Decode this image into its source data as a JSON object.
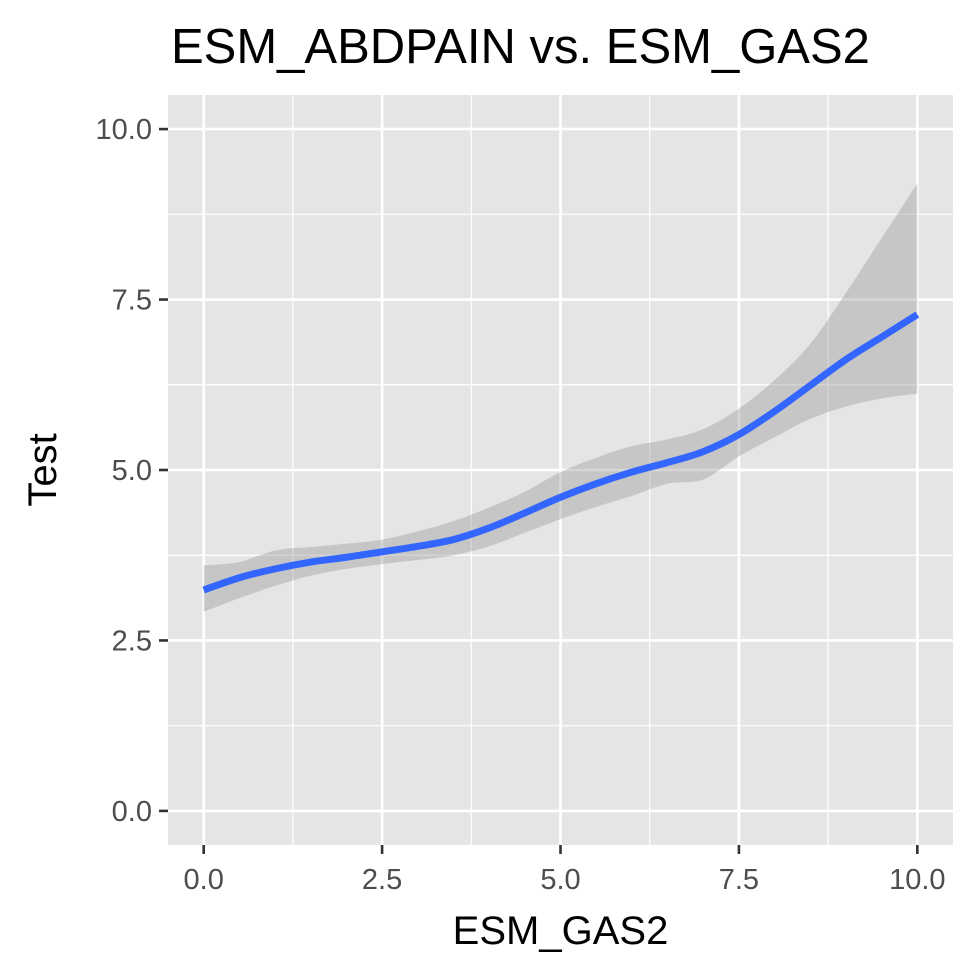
{
  "chart_data": {
    "type": "line",
    "title": "ESM_ABDPAIN vs. ESM_GAS2",
    "xlabel": "ESM_GAS2",
    "ylabel": "Test",
    "xlim": [
      -0.5,
      10.5
    ],
    "ylim": [
      -0.5,
      10.5
    ],
    "x_ticks": [
      0.0,
      2.5,
      5.0,
      7.5,
      10.0
    ],
    "x_tick_labels": [
      "0.0",
      "2.5",
      "5.0",
      "7.5",
      "10.0"
    ],
    "y_ticks": [
      0.0,
      2.5,
      5.0,
      7.5,
      10.0
    ],
    "y_tick_labels": [
      "0.0",
      "2.5",
      "5.0",
      "7.5",
      "10.0"
    ],
    "grid": true,
    "legend": "none",
    "series": [
      {
        "x": [
          0.0,
          0.5,
          1.0,
          1.5,
          2.0,
          2.5,
          3.0,
          3.5,
          4.0,
          4.5,
          5.0,
          5.5,
          6.0,
          6.5,
          7.0,
          7.5,
          8.0,
          8.5,
          9.0,
          9.5,
          10.0
        ],
        "y": [
          3.24,
          3.42,
          3.55,
          3.65,
          3.72,
          3.8,
          3.88,
          3.98,
          4.15,
          4.37,
          4.6,
          4.8,
          4.97,
          5.11,
          5.27,
          5.52,
          5.86,
          6.24,
          6.62,
          6.95,
          7.28
        ],
        "ci_upper": [
          3.6,
          3.65,
          3.82,
          3.87,
          3.92,
          3.98,
          4.1,
          4.25,
          4.45,
          4.68,
          4.97,
          5.18,
          5.35,
          5.45,
          5.6,
          5.9,
          6.32,
          6.85,
          7.6,
          8.4,
          9.2
        ],
        "ci_lower": [
          2.92,
          3.12,
          3.3,
          3.45,
          3.55,
          3.62,
          3.68,
          3.75,
          3.88,
          4.08,
          4.28,
          4.46,
          4.62,
          4.8,
          4.86,
          5.2,
          5.48,
          5.75,
          5.93,
          6.05,
          6.12
        ]
      }
    ],
    "colors": {
      "line": "#3366ff",
      "band": "#999999",
      "panel_bg": "#e5e5e5",
      "grid": "#ffffff",
      "tick_text": "#4d4d4d",
      "tick_mark": "#333333"
    }
  }
}
